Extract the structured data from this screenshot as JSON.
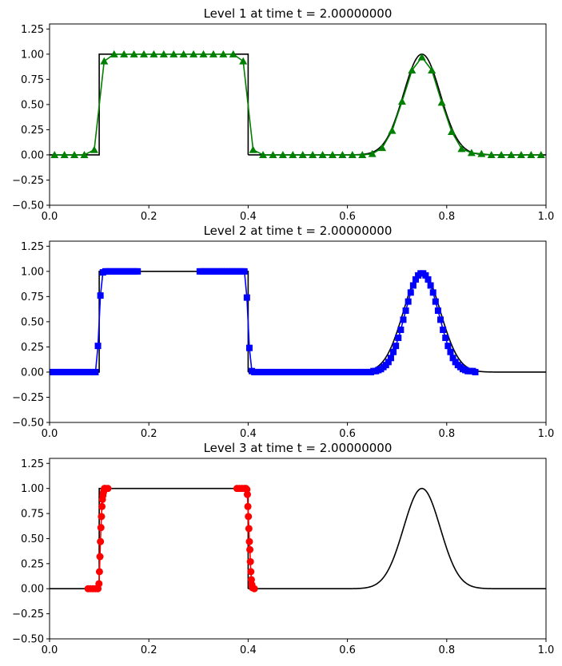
{
  "chart_data": [
    {
      "type": "line",
      "title": "Level 1 at time t =     2.00000000",
      "xlim": [
        0,
        1
      ],
      "ylim": [
        -0.5,
        1.3
      ],
      "x_ticks": [
        "0.0",
        "0.2",
        "0.4",
        "0.6",
        "0.8",
        "1.0"
      ],
      "y_ticks": [
        "−0.50",
        "−0.25",
        "0.00",
        "0.25",
        "0.50",
        "0.75",
        "1.00",
        "1.25"
      ],
      "grid": false,
      "series": [
        {
          "marker": "triangle",
          "color": "#008000",
          "x": [
            0.01,
            0.03,
            0.05,
            0.07,
            0.09,
            0.11,
            0.13,
            0.15,
            0.17,
            0.19,
            0.21,
            0.23,
            0.25,
            0.27,
            0.29,
            0.31,
            0.33,
            0.35,
            0.37,
            0.39,
            0.41,
            0.43,
            0.45,
            0.47,
            0.49,
            0.51,
            0.53,
            0.55,
            0.57,
            0.59,
            0.61,
            0.63,
            0.65,
            0.67,
            0.69,
            0.71,
            0.73,
            0.75,
            0.77,
            0.79,
            0.81,
            0.83,
            0.85,
            0.87,
            0.89,
            0.91,
            0.93,
            0.95,
            0.97,
            0.99
          ],
          "y": [
            0,
            0,
            0,
            0,
            0.05,
            0.93,
            1,
            1,
            1,
            1,
            1,
            1,
            1,
            1,
            1,
            1,
            1,
            1,
            1,
            0.93,
            0.05,
            0,
            0,
            0,
            0,
            0,
            0,
            0,
            0,
            0,
            0,
            0,
            0.01,
            0.07,
            0.24,
            0.53,
            0.84,
            0.97,
            0.84,
            0.52,
            0.23,
            0.06,
            0.02,
            0.01,
            0,
            0,
            0,
            0,
            0,
            0
          ]
        }
      ]
    },
    {
      "type": "line",
      "title": "Level 2 at time t =     2.00000000",
      "xlim": [
        0,
        1
      ],
      "ylim": [
        -0.5,
        1.3
      ],
      "x_ticks": [
        "0.0",
        "0.2",
        "0.4",
        "0.6",
        "0.8",
        "1.0"
      ],
      "y_ticks": [
        "−0.50",
        "−0.25",
        "0.00",
        "0.25",
        "0.50",
        "0.75",
        "1.00",
        "1.25"
      ],
      "grid": false,
      "series": [
        {
          "marker": "square",
          "color": "#0000ff",
          "x": [
            0.0025,
            0.0075,
            0.0125,
            0.0175,
            0.0225,
            0.0275,
            0.0325,
            0.0375,
            0.0425,
            0.0475,
            0.0525,
            0.0575,
            0.0625,
            0.0675,
            0.0725,
            0.0775,
            0.0825,
            0.0875,
            0.0925,
            0.0975,
            0.1025,
            0.1075,
            0.1125,
            0.1175,
            0.1225,
            0.1275,
            0.1325,
            0.1375,
            0.1425,
            0.1475,
            0.1525,
            0.1575,
            0.1625,
            0.1675,
            0.1725,
            0.1775,
            0.3025,
            0.3075,
            0.3125,
            0.3175,
            0.3225,
            0.3275,
            0.3325,
            0.3375,
            0.3425,
            0.3475,
            0.3525,
            0.3575,
            0.3625,
            0.3675,
            0.3725,
            0.3775,
            0.3825,
            0.3875,
            0.3925,
            0.3975,
            0.4025,
            0.4075,
            0.4125,
            0.4175,
            0.4225,
            0.4275,
            0.4325,
            0.4375,
            0.4425,
            0.4475,
            0.4525,
            0.4575,
            0.4625,
            0.4675,
            0.4725,
            0.4775,
            0.4825,
            0.4875,
            0.4925,
            0.4975,
            0.5025,
            0.5075,
            0.5125,
            0.5175,
            0.5225,
            0.5275,
            0.5325,
            0.5375,
            0.5425,
            0.5475,
            0.5525,
            0.5575,
            0.5625,
            0.5675,
            0.5725,
            0.5775,
            0.5825,
            0.5875,
            0.5925,
            0.5975,
            0.6025,
            0.6075,
            0.6125,
            0.6175,
            0.6225,
            0.6275,
            0.6325,
            0.6375,
            0.6425,
            0.6475,
            0.6525,
            0.6575,
            0.6625,
            0.6675,
            0.6725,
            0.6775,
            0.6825,
            0.6875,
            0.6925,
            0.6975,
            0.7025,
            0.7075,
            0.7125,
            0.7175,
            0.7225,
            0.7275,
            0.7325,
            0.7375,
            0.7425,
            0.7475,
            0.7525,
            0.7575,
            0.7625,
            0.7675,
            0.7725,
            0.7775,
            0.7825,
            0.7875,
            0.7925,
            0.7975,
            0.8025,
            0.8075,
            0.8125,
            0.8175,
            0.8225,
            0.8275,
            0.8325,
            0.8375,
            0.8425,
            0.8475,
            0.8525,
            0.8575
          ],
          "y": [
            0,
            0,
            0,
            0,
            0,
            0,
            0,
            0,
            0,
            0,
            0,
            0,
            0,
            0,
            0,
            0,
            0,
            0,
            0,
            0.26,
            0.76,
            0.99,
            1,
            1,
            1,
            1,
            1,
            1,
            1,
            1,
            1,
            1,
            1,
            1,
            1,
            1,
            1,
            1,
            1,
            1,
            1,
            1,
            1,
            1,
            1,
            1,
            1,
            1,
            1,
            1,
            1,
            1,
            1,
            1,
            1,
            0.74,
            0.24,
            0.01,
            0,
            0,
            0,
            0,
            0,
            0,
            0,
            0,
            0,
            0,
            0,
            0,
            0,
            0,
            0,
            0,
            0,
            0,
            0,
            0,
            0,
            0,
            0,
            0,
            0,
            0,
            0,
            0,
            0,
            0,
            0,
            0,
            0,
            0,
            0,
            0,
            0,
            0,
            0,
            0,
            0,
            0,
            0,
            0,
            0,
            0,
            0,
            0,
            0.01,
            0.01,
            0.02,
            0.03,
            0.05,
            0.07,
            0.1,
            0.14,
            0.2,
            0.26,
            0.34,
            0.42,
            0.52,
            0.61,
            0.7,
            0.79,
            0.86,
            0.92,
            0.96,
            0.98,
            0.98,
            0.96,
            0.92,
            0.86,
            0.79,
            0.7,
            0.61,
            0.52,
            0.42,
            0.34,
            0.26,
            0.2,
            0.14,
            0.1,
            0.07,
            0.05,
            0.03,
            0.02,
            0.01,
            0.01,
            0.01,
            0
          ]
        }
      ]
    },
    {
      "type": "line",
      "title": "Level 3 at time t =     2.00000000",
      "xlim": [
        0,
        1
      ],
      "ylim": [
        -0.5,
        1.3
      ],
      "x_ticks": [
        "0.0",
        "0.2",
        "0.4",
        "0.6",
        "0.8",
        "1.0"
      ],
      "y_ticks": [
        "−0.50",
        "−0.25",
        "0.00",
        "0.25",
        "0.50",
        "0.75",
        "1.00",
        "1.25"
      ],
      "grid": false,
      "series": [
        {
          "marker": "circle",
          "color": "#ff0000",
          "x": [
            0.0775,
            0.0825,
            0.0875,
            0.0925,
            0.0975,
            0.0995,
            0.1005,
            0.1015,
            0.1025,
            0.1035,
            0.1045,
            0.1055,
            0.1065,
            0.1075,
            0.1085,
            0.1095,
            0.1105,
            0.1125,
            0.1175,
            0.3775,
            0.3825,
            0.3875,
            0.3925,
            0.3955,
            0.3975,
            0.3985,
            0.3995,
            0.4005,
            0.4015,
            0.4025,
            0.4035,
            0.4045,
            0.4055,
            0.4065,
            0.4075,
            0.4085,
            0.4125
          ],
          "y": [
            0,
            0,
            0,
            0,
            0,
            0.05,
            0.17,
            0.32,
            0.47,
            0.61,
            0.72,
            0.82,
            0.89,
            0.93,
            0.96,
            0.98,
            1,
            1,
            1,
            1,
            1,
            1,
            1,
            1,
            0.99,
            0.94,
            0.82,
            0.72,
            0.6,
            0.47,
            0.39,
            0.27,
            0.17,
            0.09,
            0.04,
            0.01,
            0
          ]
        }
      ]
    }
  ]
}
